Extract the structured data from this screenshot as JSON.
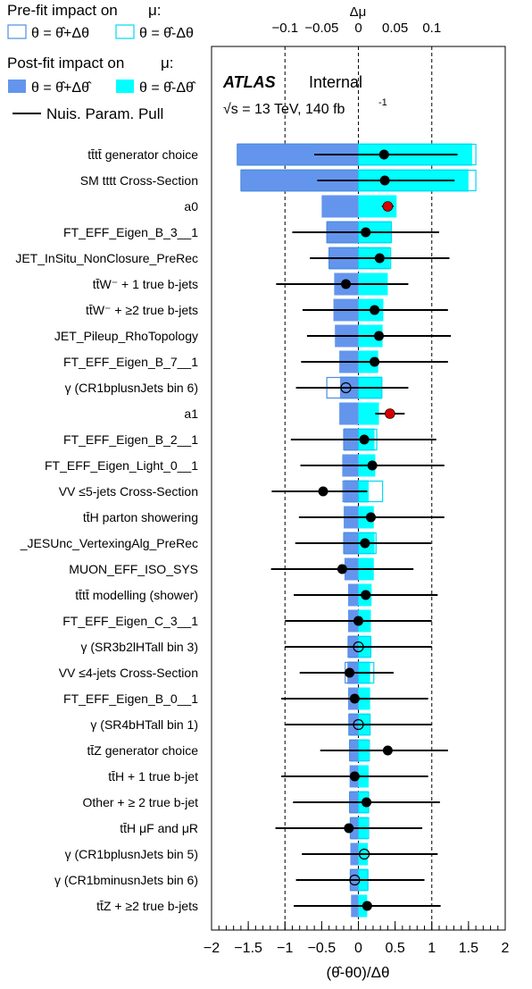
{
  "legend": {
    "prefit_title": "Pre-fit impact on",
    "mu": "μ:",
    "prefit_plus": "θ = θ̂+Δθ",
    "prefit_minus": "θ = θ̂-Δθ",
    "postfit_title": "Post-fit impact on",
    "postfit_plus": "θ = θ̂+Δθ̂",
    "postfit_minus": "θ = θ̂-Δθ̂",
    "pull": "Nuis. Param. Pull"
  },
  "atlas": {
    "label": "ATLAS",
    "status": "Internal",
    "energy": "√s = 13 TeV, 140 fb",
    "energy_sup": "-1"
  },
  "colors": {
    "postfit_plus": "#6495ED",
    "postfit_minus": "#00FFFF",
    "prefit_plus": "#4A8FE0",
    "prefit_minus": "#00D8F0",
    "pull_marker": "#000000",
    "norm_marker": "#d40000"
  },
  "chart_data": {
    "type": "ranking",
    "xlabel": "(θ̂-θ0)/Δθ",
    "top_xlabel": "Δμ",
    "xlim": [
      -2,
      2
    ],
    "top_xlim": [
      -0.2,
      0.2
    ],
    "xticks": [
      -2,
      -1.5,
      -1,
      -0.5,
      0,
      0.5,
      1,
      1.5,
      2
    ],
    "xtick_labels": [
      "−2",
      "−1.5",
      "−1",
      "−0.5",
      "0",
      "0.5",
      "1",
      "1.5",
      "2"
    ],
    "top_ticks": [
      -0.1,
      -0.05,
      0,
      0.05,
      0.1
    ],
    "top_tick_labels": [
      "−0.1",
      "−0.05",
      "0",
      "0.05",
      "0.1"
    ],
    "grid_lines": [
      -1,
      0,
      1
    ],
    "params": [
      {
        "label": "tt̄tt̄ generator choice",
        "post_up": -0.165,
        "post_down": 0.155,
        "pre_up": -0.165,
        "pre_down": 0.16,
        "pull": 0.35,
        "err_lo": 0.95,
        "err_hi": 1.0,
        "marker": "filled"
      },
      {
        "label": "SM tttt Cross-Section",
        "post_up": -0.16,
        "post_down": 0.15,
        "pre_up": -0.16,
        "pre_down": 0.16,
        "pull": 0.36,
        "err_lo": 0.92,
        "err_hi": 0.95,
        "marker": "filled"
      },
      {
        "label": "a0",
        "post_up": -0.05,
        "post_down": 0.052,
        "pre_up": null,
        "pre_down": null,
        "pull": 0.4,
        "err_lo": 0.08,
        "err_hi": 0.08,
        "marker": "norm"
      },
      {
        "label": "FT_EFF_Eigen_B_3__1",
        "post_up": -0.043,
        "post_down": 0.045,
        "pre_up": -0.043,
        "pre_down": 0.045,
        "pull": 0.1,
        "err_lo": 1.0,
        "err_hi": 1.0,
        "marker": "filled"
      },
      {
        "label": "JET_InSitu_NonClosure_PreRec",
        "post_up": -0.04,
        "post_down": 0.043,
        "pre_up": -0.04,
        "pre_down": 0.044,
        "pull": 0.29,
        "err_lo": 0.95,
        "err_hi": 0.95,
        "marker": "filled"
      },
      {
        "label": "tt̄W⁻ + 1 true b-jets",
        "post_up": -0.033,
        "post_down": 0.04,
        "pre_up": null,
        "pre_down": null,
        "pull": -0.17,
        "err_lo": 0.95,
        "err_hi": 0.85,
        "marker": "filled"
      },
      {
        "label": "tt̄W⁻ + ≥2 true b-jets",
        "post_up": -0.034,
        "post_down": 0.034,
        "pre_up": null,
        "pre_down": null,
        "pull": 0.22,
        "err_lo": 0.98,
        "err_hi": 1.0,
        "marker": "filled"
      },
      {
        "label": "JET_Pileup_RhoTopology",
        "post_up": -0.032,
        "post_down": 0.033,
        "pre_up": null,
        "pre_down": null,
        "pull": 0.28,
        "err_lo": 0.98,
        "err_hi": 0.98,
        "marker": "filled"
      },
      {
        "label": "FT_EFF_Eigen_B_7__1",
        "post_up": -0.026,
        "post_down": 0.027,
        "pre_up": null,
        "pre_down": null,
        "pull": 0.22,
        "err_lo": 1.0,
        "err_hi": 1.0,
        "marker": "filled"
      },
      {
        "label": "γ (CR1bplusnJets bin 6)",
        "post_up": -0.025,
        "post_down": 0.032,
        "pre_up": -0.043,
        "pre_down": 0.032,
        "pull": -0.17,
        "err_lo": 0.68,
        "err_hi": 0.85,
        "marker": "open"
      },
      {
        "label": "a1",
        "post_up": -0.026,
        "post_down": 0.028,
        "pre_up": null,
        "pre_down": null,
        "pull": 0.43,
        "err_lo": 0.2,
        "err_hi": 0.2,
        "marker": "norm"
      },
      {
        "label": "FT_EFF_Eigen_B_2__1",
        "post_up": -0.02,
        "post_down": 0.022,
        "pre_up": -0.02,
        "pre_down": 0.025,
        "pull": 0.08,
        "err_lo": 1.0,
        "err_hi": 0.98,
        "marker": "filled"
      },
      {
        "label": "FT_EFF_Eigen_Light_0__1",
        "post_up": -0.022,
        "post_down": 0.023,
        "pre_up": null,
        "pre_down": null,
        "pull": 0.19,
        "err_lo": 0.98,
        "err_hi": 0.98,
        "marker": "filled"
      },
      {
        "label": "VV ≤5-jets Cross-Section",
        "post_up": -0.02,
        "post_down": 0.014,
        "pre_up": -0.021,
        "pre_down": 0.033,
        "pull": -0.48,
        "err_lo": 0.7,
        "err_hi": 0.6,
        "marker": "filled"
      },
      {
        "label": "tt̄H parton showering",
        "post_up": -0.02,
        "post_down": 0.021,
        "pre_up": null,
        "pre_down": null,
        "pull": 0.17,
        "err_lo": 0.98,
        "err_hi": 1.0,
        "marker": "filled"
      },
      {
        "label": "_JESUnc_VertexingAlg_PreRec",
        "post_up": -0.02,
        "post_down": 0.022,
        "pre_up": -0.02,
        "pre_down": 0.024,
        "pull": 0.09,
        "err_lo": 0.95,
        "err_hi": 0.9,
        "marker": "filled"
      },
      {
        "label": "MUON_EFF_ISO_SYS",
        "post_up": -0.019,
        "post_down": 0.021,
        "pre_up": null,
        "pre_down": null,
        "pull": -0.22,
        "err_lo": 0.97,
        "err_hi": 0.97,
        "marker": "filled"
      },
      {
        "label": "tt̄tt̄ modelling (shower)",
        "post_up": -0.014,
        "post_down": 0.018,
        "pre_up": null,
        "pre_down": null,
        "pull": 0.1,
        "err_lo": 0.98,
        "err_hi": 0.98,
        "marker": "filled"
      },
      {
        "label": "FT_EFF_Eigen_C_3__1",
        "post_up": -0.014,
        "post_down": 0.017,
        "pre_up": null,
        "pre_down": null,
        "pull": 0.0,
        "err_lo": 1.0,
        "err_hi": 1.0,
        "marker": "filled"
      },
      {
        "label": "γ (SR3b2lHTall bin 3)",
        "post_up": -0.014,
        "post_down": 0.017,
        "pre_up": -0.014,
        "pre_down": 0.017,
        "pull": 0.0,
        "err_lo": 1.0,
        "err_hi": 1.0,
        "marker": "open"
      },
      {
        "label": "VV ≤4-jets Cross-Section",
        "post_up": -0.015,
        "post_down": 0.016,
        "pre_up": -0.018,
        "pre_down": 0.021,
        "pull": -0.12,
        "err_lo": 0.68,
        "err_hi": 0.6,
        "marker": "filled"
      },
      {
        "label": "FT_EFF_Eigen_B_0__1",
        "post_up": -0.014,
        "post_down": 0.016,
        "pre_up": null,
        "pre_down": null,
        "pull": -0.05,
        "err_lo": 1.0,
        "err_hi": 1.0,
        "marker": "filled"
      },
      {
        "label": "γ (SR4bHTall bin 1)",
        "post_up": -0.013,
        "post_down": 0.016,
        "pre_up": -0.013,
        "pre_down": 0.016,
        "pull": 0.0,
        "err_lo": 1.0,
        "err_hi": 1.0,
        "marker": "open"
      },
      {
        "label": "tt̄Z generator choice",
        "post_up": -0.012,
        "post_down": 0.014,
        "pre_up": -0.012,
        "pre_down": 0.015,
        "pull": 0.4,
        "err_lo": 0.92,
        "err_hi": 0.82,
        "marker": "filled"
      },
      {
        "label": "tt̄H + 1 true b-jet",
        "post_up": -0.012,
        "post_down": 0.014,
        "pre_up": null,
        "pre_down": null,
        "pull": -0.05,
        "err_lo": 1.0,
        "err_hi": 1.0,
        "marker": "filled"
      },
      {
        "label": "Other + ≥ 2 true b-jet",
        "post_up": -0.012,
        "post_down": 0.014,
        "pre_up": -0.012,
        "pre_down": 0.014,
        "pull": 0.11,
        "err_lo": 1.0,
        "err_hi": 1.0,
        "marker": "filled"
      },
      {
        "label": "tt̄H μF and μR",
        "post_up": -0.011,
        "post_down": 0.013,
        "pre_up": -0.011,
        "pre_down": 0.014,
        "pull": -0.13,
        "err_lo": 1.0,
        "err_hi": 1.0,
        "marker": "filled"
      },
      {
        "label": "γ (CR1bplusnJets bin 5)",
        "post_up": -0.011,
        "post_down": 0.013,
        "pre_up": null,
        "pre_down": null,
        "pull": 0.08,
        "err_lo": 0.85,
        "err_hi": 1.0,
        "marker": "open"
      },
      {
        "label": "γ (CR1bminusnJets bin 6)",
        "post_up": -0.011,
        "post_down": 0.013,
        "pre_up": -0.011,
        "pre_down": 0.013,
        "pull": -0.05,
        "err_lo": 0.8,
        "err_hi": 0.95,
        "marker": "open"
      },
      {
        "label": "tt̄Z + ≥2 true b-jets",
        "post_up": -0.01,
        "post_down": 0.012,
        "pre_up": null,
        "pre_down": null,
        "pull": 0.12,
        "err_lo": 1.0,
        "err_hi": 1.0,
        "marker": "filled"
      }
    ]
  }
}
